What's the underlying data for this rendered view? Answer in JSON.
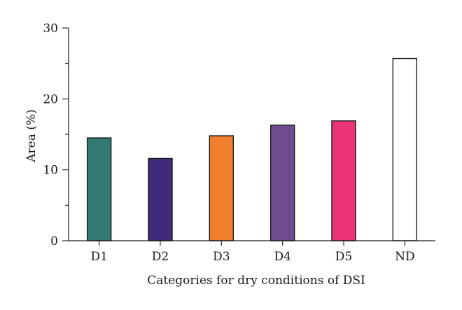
{
  "chart_data": {
    "type": "bar",
    "categories": [
      "D1",
      "D2",
      "D3",
      "D4",
      "D5",
      "ND"
    ],
    "values": [
      14.5,
      11.6,
      14.8,
      16.3,
      16.9,
      25.7
    ],
    "colors": [
      "#347a74",
      "#3f2b79",
      "#f27d2d",
      "#6f4c8f",
      "#e93578",
      "#ffffff"
    ],
    "title": "",
    "xlabel": "Categories for dry conditions of DSI",
    "ylabel": "Area (%)",
    "ylim": [
      0,
      30
    ],
    "yticks": [
      0,
      10,
      20,
      30
    ],
    "grid": false,
    "legend": "none"
  }
}
